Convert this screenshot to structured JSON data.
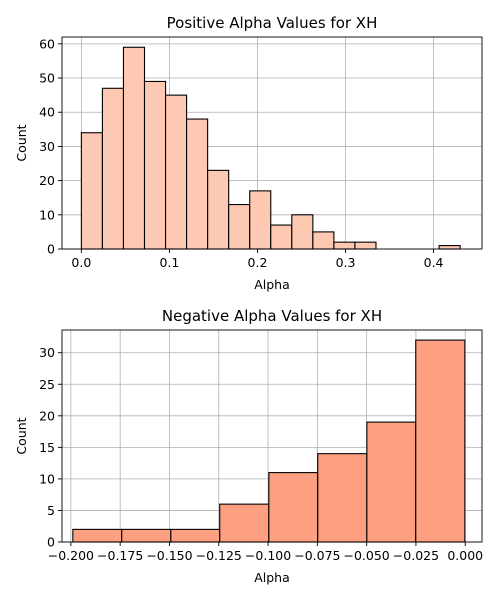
{
  "chart_data": [
    {
      "type": "bar",
      "title": "Positive Alpha Values for XH",
      "xlabel": "Alpha",
      "ylabel": "Count",
      "color": "#fdc9b3",
      "edgecolor": "#000000",
      "xlim": [
        -0.022,
        0.455
      ],
      "ylim": [
        0,
        62
      ],
      "xticks": [
        0.0,
        0.1,
        0.2,
        0.3,
        0.4
      ],
      "xtick_labels": [
        "0.0",
        "0.1",
        "0.2",
        "0.3",
        "0.4"
      ],
      "yticks": [
        0,
        10,
        20,
        30,
        40,
        50,
        60
      ],
      "ytick_labels": [
        "0",
        "10",
        "20",
        "30",
        "40",
        "50",
        "60"
      ],
      "grid": true,
      "bins": [
        {
          "x0": 0.0,
          "x1": 0.0239,
          "value": 34
        },
        {
          "x0": 0.0239,
          "x1": 0.0478,
          "value": 47
        },
        {
          "x0": 0.0478,
          "x1": 0.0717,
          "value": 59
        },
        {
          "x0": 0.0717,
          "x1": 0.0956,
          "value": 49
        },
        {
          "x0": 0.0956,
          "x1": 0.1195,
          "value": 45
        },
        {
          "x0": 0.1195,
          "x1": 0.1434,
          "value": 38
        },
        {
          "x0": 0.1434,
          "x1": 0.1673,
          "value": 23
        },
        {
          "x0": 0.1673,
          "x1": 0.1912,
          "value": 13
        },
        {
          "x0": 0.1912,
          "x1": 0.2151,
          "value": 17
        },
        {
          "x0": 0.2151,
          "x1": 0.239,
          "value": 7
        },
        {
          "x0": 0.239,
          "x1": 0.2629,
          "value": 10
        },
        {
          "x0": 0.2629,
          "x1": 0.2868,
          "value": 5
        },
        {
          "x0": 0.2868,
          "x1": 0.3107,
          "value": 2
        },
        {
          "x0": 0.3107,
          "x1": 0.3346,
          "value": 2
        },
        {
          "x0": 0.3346,
          "x1": 0.3585,
          "value": 0
        },
        {
          "x0": 0.3585,
          "x1": 0.3824,
          "value": 0
        },
        {
          "x0": 0.3824,
          "x1": 0.4063,
          "value": 0
        },
        {
          "x0": 0.4063,
          "x1": 0.4302,
          "value": 1
        }
      ]
    },
    {
      "type": "bar",
      "title": "Negative Alpha Values for XH",
      "xlabel": "Alpha",
      "ylabel": "Count",
      "color": "#fca081",
      "edgecolor": "#000000",
      "xlim": [
        -0.2045,
        0.0085
      ],
      "ylim": [
        0,
        33.6
      ],
      "xticks": [
        -0.2,
        -0.175,
        -0.15,
        -0.125,
        -0.1,
        -0.075,
        -0.05,
        -0.025,
        0.0
      ],
      "xtick_labels": [
        "−0.200",
        "−0.175",
        "−0.150",
        "−0.125",
        "−0.100",
        "−0.075",
        "−0.050",
        "−0.025",
        "0.000"
      ],
      "yticks": [
        0,
        5,
        10,
        15,
        20,
        25,
        30
      ],
      "ytick_labels": [
        "0",
        "5",
        "10",
        "15",
        "20",
        "25",
        "30"
      ],
      "grid": true,
      "bins": [
        {
          "x0": -0.199,
          "x1": -0.1742,
          "value": 2
        },
        {
          "x0": -0.1742,
          "x1": -0.1493,
          "value": 2
        },
        {
          "x0": -0.1493,
          "x1": -0.1245,
          "value": 2
        },
        {
          "x0": -0.1245,
          "x1": -0.0996,
          "value": 6
        },
        {
          "x0": -0.0996,
          "x1": -0.0748,
          "value": 11
        },
        {
          "x0": -0.0748,
          "x1": -0.0499,
          "value": 14
        },
        {
          "x0": -0.0499,
          "x1": -0.0251,
          "value": 19
        },
        {
          "x0": -0.0251,
          "x1": -0.0002,
          "value": 32
        }
      ]
    }
  ]
}
